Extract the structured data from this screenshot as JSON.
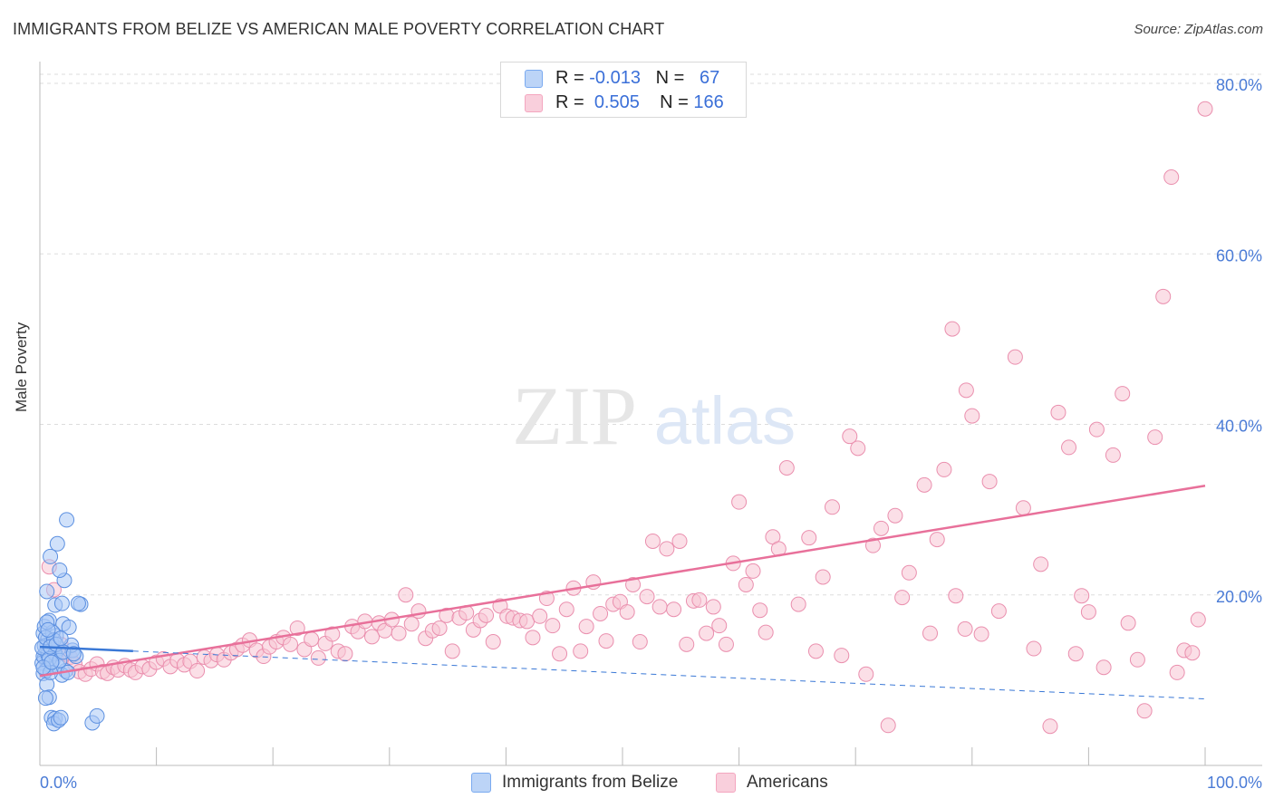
{
  "header": {
    "title": "IMMIGRANTS FROM BELIZE VS AMERICAN MALE POVERTY CORRELATION CHART",
    "source": "Source: ZipAtlas.com"
  },
  "watermark": {
    "zip": "ZIP",
    "atlas": "atlas"
  },
  "legend_top": {
    "rows": [
      {
        "r_label": "R =",
        "r_value": "-0.013",
        "n_label": "N =",
        "n_value": "67",
        "color": "#7aaaf0"
      },
      {
        "r_label": "R =",
        "r_value": "0.505",
        "n_label": "N =",
        "n_value": "166",
        "color": "#f4a6bf"
      }
    ]
  },
  "legend_bottom": {
    "items": [
      {
        "label": "Immigrants from Belize",
        "color": "#7aaaf0"
      },
      {
        "label": "Americans",
        "color": "#f4a6bf"
      }
    ]
  },
  "colors": {
    "blue_fill": "#a9c8f5",
    "blue_stroke": "#5b8fe0",
    "blue_line": "#3a78d6",
    "pink_fill": "#f7c4d4",
    "pink_stroke": "#ea8fae",
    "pink_line": "#e8709a",
    "grid": "#dddddd",
    "axis_label": "#4a7bd6"
  },
  "chart_data": {
    "type": "scatter",
    "title": "IMMIGRANTS FROM BELIZE VS AMERICAN MALE POVERTY CORRELATION CHART",
    "xlabel": "",
    "ylabel": "Male Poverty",
    "xlim": [
      0,
      100
    ],
    "ylim": [
      0,
      80
    ],
    "x_tick_labels": [
      "0.0%",
      "100.0%"
    ],
    "y_ticks": [
      20,
      40,
      60,
      80
    ],
    "y_tick_labels": [
      "20.0%",
      "40.0%",
      "60.0%",
      "80.0%"
    ],
    "grid": true,
    "series": [
      {
        "name": "Immigrants from Belize",
        "r": -0.013,
        "n": 67,
        "trend": {
          "x0": 0,
          "y0": 13.9,
          "x1": 100,
          "y1": 7.8,
          "solid_until": 8
        },
        "points": [
          [
            0.3,
            15.5
          ],
          [
            0.5,
            13.2
          ],
          [
            0.4,
            12.6
          ],
          [
            0.6,
            14.1
          ],
          [
            0.8,
            11.8
          ],
          [
            1.0,
            13.6
          ],
          [
            0.2,
            12.0
          ],
          [
            0.7,
            14.8
          ],
          [
            0.9,
            12.9
          ],
          [
            1.2,
            13.4
          ],
          [
            0.5,
            11.1
          ],
          [
            1.4,
            15.2
          ],
          [
            0.3,
            10.8
          ],
          [
            0.6,
            9.5
          ],
          [
            1.1,
            12.3
          ],
          [
            1.6,
            13.7
          ],
          [
            0.4,
            16.3
          ],
          [
            0.8,
            17.0
          ],
          [
            1.3,
            18.8
          ],
          [
            1.9,
            19.0
          ],
          [
            2.1,
            21.7
          ],
          [
            0.6,
            20.4
          ],
          [
            1.7,
            22.9
          ],
          [
            0.9,
            24.5
          ],
          [
            1.5,
            26.0
          ],
          [
            2.3,
            28.8
          ],
          [
            0.8,
            8.0
          ],
          [
            0.5,
            7.9
          ],
          [
            1.0,
            5.6
          ],
          [
            1.3,
            5.5
          ],
          [
            1.2,
            4.9
          ],
          [
            1.6,
            5.3
          ],
          [
            1.8,
            5.6
          ],
          [
            3.5,
            18.9
          ],
          [
            4.5,
            5.0
          ],
          [
            4.9,
            5.8
          ],
          [
            2.0,
            16.6
          ],
          [
            2.5,
            16.2
          ],
          [
            2.8,
            13.5
          ],
          [
            3.1,
            12.8
          ],
          [
            2.2,
            11.1
          ],
          [
            1.9,
            10.6
          ],
          [
            2.7,
            14.1
          ],
          [
            0.3,
            12.8
          ],
          [
            0.7,
            13.0
          ],
          [
            1.0,
            14.4
          ],
          [
            0.4,
            14.0
          ],
          [
            1.5,
            11.7
          ],
          [
            2.4,
            10.9
          ],
          [
            0.9,
            10.9
          ],
          [
            1.1,
            15.6
          ],
          [
            0.6,
            16.8
          ],
          [
            0.2,
            13.8
          ],
          [
            1.3,
            13.1
          ],
          [
            0.8,
            12.5
          ],
          [
            1.7,
            12.3
          ],
          [
            0.5,
            15.0
          ],
          [
            1.2,
            14.7
          ],
          [
            0.3,
            11.5
          ],
          [
            0.9,
            13.9
          ],
          [
            1.4,
            14.2
          ],
          [
            2.0,
            13.3
          ],
          [
            2.9,
            13.1
          ],
          [
            1.8,
            14.9
          ],
          [
            0.7,
            15.9
          ],
          [
            1.0,
            12.1
          ],
          [
            3.3,
            19.0
          ]
        ]
      },
      {
        "name": "Americans",
        "r": 0.505,
        "n": 166,
        "trend": {
          "x0": 0,
          "y0": 10.5,
          "x1": 100,
          "y1": 32.8
        },
        "points": [
          [
            0.8,
            23.3
          ],
          [
            1.2,
            20.6
          ],
          [
            1.8,
            14.2
          ],
          [
            2.1,
            13.1
          ],
          [
            2.6,
            12.7
          ],
          [
            3.0,
            11.9
          ],
          [
            3.4,
            11.0
          ],
          [
            3.9,
            10.7
          ],
          [
            4.4,
            11.3
          ],
          [
            4.9,
            11.9
          ],
          [
            5.4,
            11.0
          ],
          [
            5.8,
            10.8
          ],
          [
            6.3,
            11.5
          ],
          [
            6.7,
            11.2
          ],
          [
            7.3,
            11.7
          ],
          [
            7.8,
            11.2
          ],
          [
            8.2,
            10.9
          ],
          [
            8.8,
            11.6
          ],
          [
            9.4,
            11.3
          ],
          [
            10.0,
            12.1
          ],
          [
            10.6,
            12.5
          ],
          [
            11.2,
            11.6
          ],
          [
            11.8,
            12.3
          ],
          [
            12.4,
            11.8
          ],
          [
            12.9,
            12.2
          ],
          [
            13.5,
            11.1
          ],
          [
            14.1,
            12.7
          ],
          [
            14.7,
            12.3
          ],
          [
            15.2,
            13.0
          ],
          [
            15.8,
            12.4
          ],
          [
            16.4,
            13.2
          ],
          [
            16.9,
            13.6
          ],
          [
            17.4,
            14.1
          ],
          [
            18.0,
            14.7
          ],
          [
            18.6,
            13.5
          ],
          [
            19.2,
            12.8
          ],
          [
            19.7,
            13.9
          ],
          [
            20.3,
            14.5
          ],
          [
            20.9,
            15.0
          ],
          [
            21.5,
            14.2
          ],
          [
            22.1,
            16.1
          ],
          [
            22.7,
            13.6
          ],
          [
            23.3,
            14.8
          ],
          [
            23.9,
            12.6
          ],
          [
            24.5,
            14.3
          ],
          [
            25.1,
            15.4
          ],
          [
            25.6,
            13.4
          ],
          [
            26.2,
            13.1
          ],
          [
            26.8,
            16.3
          ],
          [
            27.3,
            15.7
          ],
          [
            27.9,
            16.9
          ],
          [
            28.5,
            15.1
          ],
          [
            29.1,
            16.7
          ],
          [
            29.6,
            15.8
          ],
          [
            30.2,
            17.1
          ],
          [
            30.8,
            15.5
          ],
          [
            31.4,
            20.0
          ],
          [
            31.9,
            16.6
          ],
          [
            32.5,
            18.1
          ],
          [
            33.1,
            14.9
          ],
          [
            33.7,
            15.8
          ],
          [
            34.3,
            16.1
          ],
          [
            34.9,
            17.6
          ],
          [
            35.4,
            13.4
          ],
          [
            36.0,
            17.3
          ],
          [
            36.6,
            17.9
          ],
          [
            37.2,
            15.9
          ],
          [
            37.8,
            17.0
          ],
          [
            38.3,
            17.6
          ],
          [
            38.9,
            14.5
          ],
          [
            39.5,
            18.7
          ],
          [
            40.1,
            17.5
          ],
          [
            40.6,
            17.3
          ],
          [
            41.2,
            17.0
          ],
          [
            41.8,
            16.9
          ],
          [
            42.3,
            15.0
          ],
          [
            42.9,
            17.5
          ],
          [
            43.5,
            19.6
          ],
          [
            44.0,
            16.4
          ],
          [
            44.6,
            13.1
          ],
          [
            45.2,
            18.3
          ],
          [
            45.8,
            20.8
          ],
          [
            46.4,
            13.4
          ],
          [
            46.9,
            16.3
          ],
          [
            47.5,
            21.5
          ],
          [
            48.1,
            17.8
          ],
          [
            48.6,
            14.6
          ],
          [
            49.2,
            18.9
          ],
          [
            49.8,
            19.2
          ],
          [
            50.4,
            18.0
          ],
          [
            50.9,
            21.2
          ],
          [
            51.5,
            14.5
          ],
          [
            52.1,
            19.8
          ],
          [
            52.6,
            26.3
          ],
          [
            53.2,
            18.6
          ],
          [
            53.8,
            25.4
          ],
          [
            54.4,
            18.3
          ],
          [
            54.9,
            26.3
          ],
          [
            55.5,
            14.2
          ],
          [
            56.1,
            19.3
          ],
          [
            56.6,
            19.4
          ],
          [
            57.2,
            15.5
          ],
          [
            57.8,
            18.6
          ],
          [
            58.3,
            16.4
          ],
          [
            58.9,
            14.2
          ],
          [
            59.5,
            23.7
          ],
          [
            60.0,
            30.9
          ],
          [
            60.6,
            21.2
          ],
          [
            61.2,
            22.8
          ],
          [
            61.8,
            18.2
          ],
          [
            62.3,
            15.6
          ],
          [
            62.9,
            26.8
          ],
          [
            63.4,
            25.4
          ],
          [
            64.1,
            34.9
          ],
          [
            65.1,
            18.9
          ],
          [
            66.0,
            26.7
          ],
          [
            66.6,
            13.4
          ],
          [
            67.2,
            22.1
          ],
          [
            68.0,
            30.3
          ],
          [
            68.8,
            12.9
          ],
          [
            69.5,
            38.6
          ],
          [
            70.2,
            37.2
          ],
          [
            70.9,
            10.7
          ],
          [
            71.5,
            25.8
          ],
          [
            72.2,
            27.8
          ],
          [
            72.8,
            4.7
          ],
          [
            73.4,
            29.3
          ],
          [
            74.0,
            19.7
          ],
          [
            74.6,
            22.6
          ],
          [
            75.9,
            32.9
          ],
          [
            76.4,
            15.5
          ],
          [
            77.0,
            26.5
          ],
          [
            77.6,
            34.7
          ],
          [
            78.3,
            51.2
          ],
          [
            78.6,
            19.9
          ],
          [
            79.4,
            16.0
          ],
          [
            79.5,
            44.0
          ],
          [
            80.0,
            41.0
          ],
          [
            80.8,
            15.4
          ],
          [
            81.5,
            33.3
          ],
          [
            82.3,
            18.1
          ],
          [
            83.7,
            47.9
          ],
          [
            84.4,
            30.2
          ],
          [
            85.3,
            13.7
          ],
          [
            85.9,
            23.6
          ],
          [
            86.7,
            4.6
          ],
          [
            87.4,
            41.4
          ],
          [
            88.3,
            37.3
          ],
          [
            88.9,
            13.1
          ],
          [
            89.4,
            19.9
          ],
          [
            90.0,
            18.0
          ],
          [
            90.7,
            39.4
          ],
          [
            91.3,
            11.5
          ],
          [
            92.1,
            36.4
          ],
          [
            92.9,
            43.6
          ],
          [
            93.4,
            16.7
          ],
          [
            94.2,
            12.4
          ],
          [
            94.8,
            6.4
          ],
          [
            95.7,
            38.5
          ],
          [
            96.4,
            55.0
          ],
          [
            97.1,
            69.0
          ],
          [
            97.6,
            10.9
          ],
          [
            98.2,
            13.5
          ],
          [
            98.9,
            13.2
          ],
          [
            99.4,
            17.1
          ],
          [
            100.0,
            77.0
          ]
        ]
      }
    ]
  }
}
